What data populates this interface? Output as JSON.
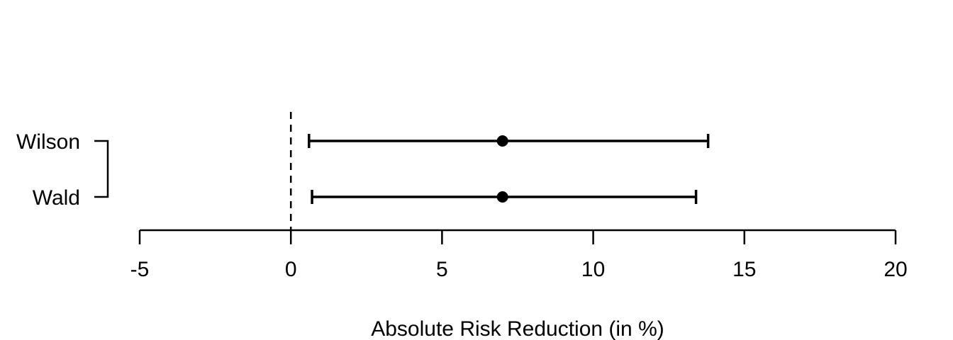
{
  "figure": {
    "background_color": "#ffffff",
    "foreground_color": "#000000"
  },
  "chart_data": {
    "type": "scatter",
    "variant": "forest-plot-confidence-intervals",
    "title": "",
    "xlabel": "Absolute Risk Reduction (in %)",
    "ylabel": "",
    "xlim": [
      -5,
      20
    ],
    "x_ticks": [
      -5,
      0,
      5,
      10,
      15,
      20
    ],
    "x_tick_labels": [
      "-5",
      "0",
      "5",
      "10",
      "15",
      "20"
    ],
    "grid": false,
    "legend": false,
    "reference_line": {
      "x": 0,
      "style": "dashed"
    },
    "categories": [
      "Wilson",
      "Wald"
    ],
    "series": [
      {
        "name": "Wilson",
        "estimate": 7.0,
        "ci_lower": 0.6,
        "ci_upper": 13.8
      },
      {
        "name": "Wald",
        "estimate": 7.0,
        "ci_lower": 0.7,
        "ci_upper": 13.4
      }
    ],
    "colors": {
      "line": "#000000",
      "point": "#000000",
      "background": "#ffffff"
    }
  }
}
